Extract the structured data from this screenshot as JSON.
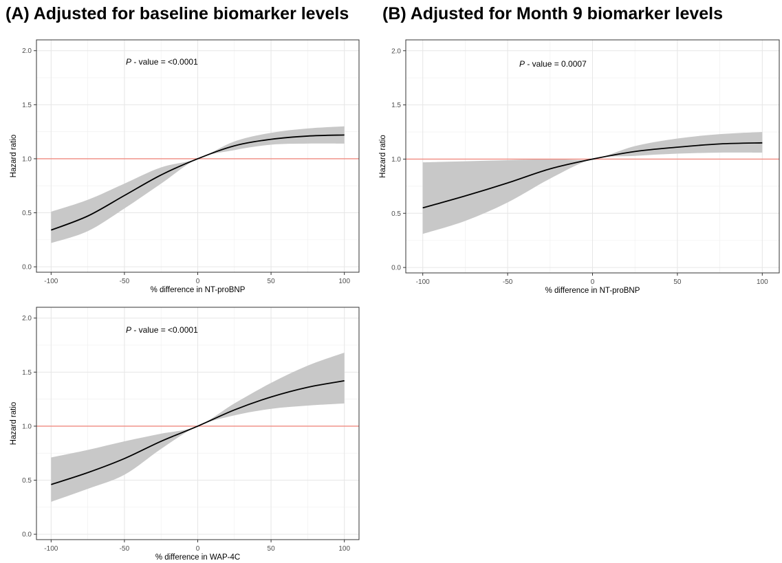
{
  "panels": {
    "a": {
      "label": "(A)",
      "title": "Adjusted for baseline biomarker levels"
    },
    "b": {
      "label": "(B)",
      "title": "Adjusted for Month 9 biomarker levels"
    }
  },
  "colors": {
    "reference_line": "#f08a80",
    "ci_band": "#c8c8c8",
    "curve": "#000000",
    "grid": "#e6e6e6"
  },
  "chart_data": [
    {
      "id": "chart-a1",
      "type": "line",
      "xlabel": "% difference in NT-proBNP",
      "ylabel": "Hazard ratio",
      "xlim": [
        -110,
        110
      ],
      "ylim": [
        -0.05,
        2.1
      ],
      "xticks": [
        -100,
        -50,
        0,
        50,
        100
      ],
      "yticks": [
        0.0,
        0.5,
        1.0,
        1.5,
        2.0
      ],
      "ytick_labels": [
        "0.0",
        "0.5",
        "1.0",
        "1.5",
        "2.0"
      ],
      "grid": true,
      "reference_line": 1.0,
      "annotation": {
        "p_label": "P",
        "text": " - value = <0.0001"
      },
      "x": [
        -100,
        -75,
        -50,
        -25,
        0,
        25,
        50,
        75,
        100
      ],
      "y": [
        0.34,
        0.47,
        0.66,
        0.85,
        1.0,
        1.12,
        1.18,
        1.21,
        1.22
      ],
      "lower": [
        0.22,
        0.33,
        0.54,
        0.77,
        1.0,
        1.08,
        1.13,
        1.14,
        1.14
      ],
      "upper": [
        0.51,
        0.62,
        0.77,
        0.92,
        1.0,
        1.16,
        1.24,
        1.28,
        1.3
      ]
    },
    {
      "id": "chart-b1",
      "type": "line",
      "xlabel": "% difference in NT-proBNP",
      "ylabel": "Hazard ratio",
      "xlim": [
        -110,
        110
      ],
      "ylim": [
        -0.05,
        2.1
      ],
      "xticks": [
        -100,
        -50,
        0,
        50,
        100
      ],
      "yticks": [
        0.0,
        0.5,
        1.0,
        1.5,
        2.0
      ],
      "ytick_labels": [
        "0.0",
        "0.5",
        "1.0",
        "1.5",
        "2.0"
      ],
      "grid": true,
      "reference_line": 1.0,
      "annotation": {
        "p_label": "P",
        "text": " - value = 0.0007"
      },
      "x": [
        -100,
        -75,
        -50,
        -25,
        0,
        25,
        50,
        75,
        100
      ],
      "y": [
        0.55,
        0.66,
        0.78,
        0.91,
        1.0,
        1.07,
        1.11,
        1.14,
        1.15
      ],
      "lower": [
        0.31,
        0.43,
        0.6,
        0.82,
        1.0,
        1.03,
        1.05,
        1.06,
        1.06
      ],
      "upper": [
        0.97,
        0.98,
        0.99,
        1.0,
        1.0,
        1.12,
        1.19,
        1.23,
        1.25
      ]
    },
    {
      "id": "chart-a2",
      "type": "line",
      "xlabel": "% difference in WAP-4C",
      "ylabel": "Hazard ratio",
      "xlim": [
        -110,
        110
      ],
      "ylim": [
        -0.05,
        2.1
      ],
      "xticks": [
        -100,
        -50,
        0,
        50,
        100
      ],
      "yticks": [
        0.0,
        0.5,
        1.0,
        1.5,
        2.0
      ],
      "ytick_labels": [
        "0.0",
        "0.5",
        "1.0",
        "1.5",
        "2.0"
      ],
      "grid": true,
      "reference_line": 1.0,
      "annotation": {
        "p_label": "P",
        "text": " - value = <0.0001"
      },
      "x": [
        -100,
        -75,
        -50,
        -25,
        0,
        25,
        50,
        75,
        100
      ],
      "y": [
        0.46,
        0.57,
        0.7,
        0.86,
        1.0,
        1.15,
        1.27,
        1.36,
        1.42
      ],
      "lower": [
        0.3,
        0.42,
        0.55,
        0.79,
        1.0,
        1.1,
        1.16,
        1.19,
        1.21
      ],
      "upper": [
        0.71,
        0.78,
        0.86,
        0.93,
        1.0,
        1.21,
        1.4,
        1.56,
        1.68
      ]
    }
  ]
}
